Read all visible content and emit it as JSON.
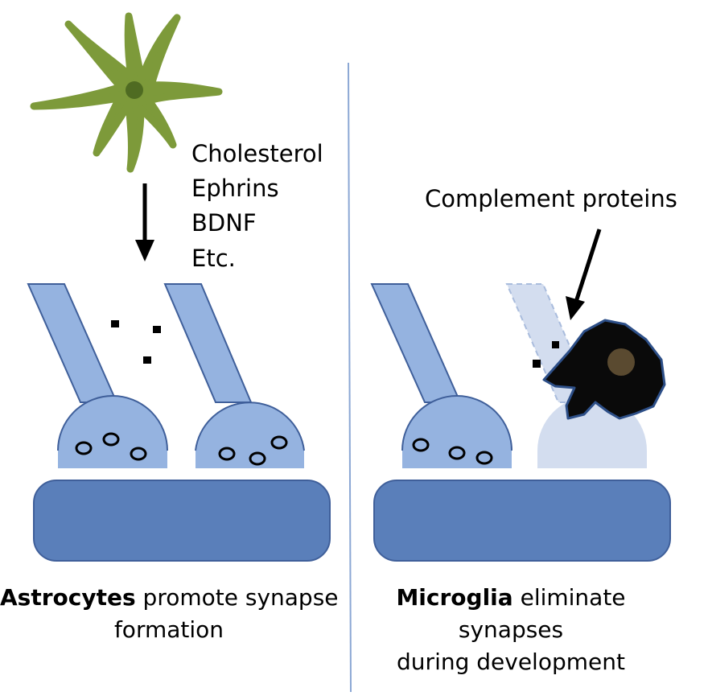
{
  "left_panel": {
    "factors": [
      "Cholesterol",
      "Ephrins",
      "BDNF",
      "Etc."
    ],
    "caption_bold": "Astrocytes",
    "caption_line1_rest": " promote synapse",
    "caption_line2": "formation"
  },
  "right_panel": {
    "complement_label": "Complement proteins",
    "caption_bold": "Microglia",
    "caption_line1_rest": " eliminate",
    "caption_line2": "synapses",
    "caption_line3": "during development"
  },
  "colors": {
    "astrocyte": "#7d9a3a",
    "astrocyte_nucleus": "#4f6b22",
    "axon": "#95b3e0",
    "axon_outline": "#3f5f9a",
    "postsynaptic": "#5a7fba",
    "microglia": "#0a0a0a",
    "microglia_outline": "#2d4f88",
    "microglia_nucleus": "#5a4a30",
    "faded_axon": "#d3ddef",
    "divider": "#8ba7d4"
  },
  "icons": [
    "astrocyte-icon",
    "microglia-icon",
    "arrow-down-icon",
    "arrow-diagonal-icon"
  ]
}
